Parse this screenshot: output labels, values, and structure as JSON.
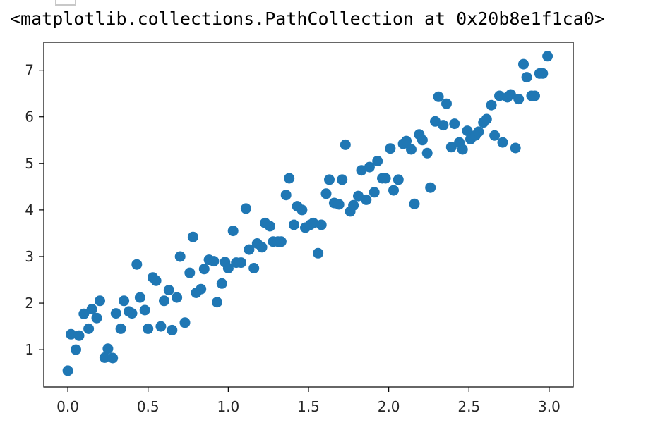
{
  "output": {
    "repr_text": "<matplotlib.collections.PathCollection at 0x20b8e1f1ca0>"
  },
  "chart_data": {
    "type": "scatter",
    "title": "",
    "xlabel": "",
    "ylabel": "",
    "xlim": [
      -0.15,
      3.15
    ],
    "ylim": [
      0.2,
      7.6
    ],
    "xticks": [
      0.0,
      0.5,
      1.0,
      1.5,
      2.0,
      2.5,
      3.0
    ],
    "xtick_labels": [
      "0.0",
      "0.5",
      "1.0",
      "1.5",
      "2.0",
      "2.5",
      "3.0"
    ],
    "yticks": [
      1,
      2,
      3,
      4,
      5,
      6,
      7
    ],
    "ytick_labels": [
      "1",
      "2",
      "3",
      "4",
      "5",
      "6",
      "7"
    ],
    "grid": false,
    "marker_color": "#1f77b4",
    "series": [
      {
        "points": [
          [
            0.0,
            0.55
          ],
          [
            0.02,
            1.33
          ],
          [
            0.05,
            1.0
          ],
          [
            0.07,
            1.3
          ],
          [
            0.1,
            1.77
          ],
          [
            0.13,
            1.45
          ],
          [
            0.15,
            1.87
          ],
          [
            0.18,
            1.68
          ],
          [
            0.2,
            2.05
          ],
          [
            0.23,
            0.83
          ],
          [
            0.25,
            1.02
          ],
          [
            0.28,
            0.82
          ],
          [
            0.3,
            1.78
          ],
          [
            0.33,
            1.45
          ],
          [
            0.35,
            2.05
          ],
          [
            0.38,
            1.82
          ],
          [
            0.4,
            1.78
          ],
          [
            0.43,
            2.83
          ],
          [
            0.45,
            2.12
          ],
          [
            0.48,
            1.85
          ],
          [
            0.5,
            1.45
          ],
          [
            0.53,
            2.55
          ],
          [
            0.55,
            2.48
          ],
          [
            0.58,
            1.5
          ],
          [
            0.6,
            2.05
          ],
          [
            0.63,
            2.28
          ],
          [
            0.65,
            1.42
          ],
          [
            0.68,
            2.12
          ],
          [
            0.7,
            3.0
          ],
          [
            0.73,
            1.58
          ],
          [
            0.76,
            2.65
          ],
          [
            0.78,
            3.42
          ],
          [
            0.8,
            2.22
          ],
          [
            0.83,
            2.3
          ],
          [
            0.85,
            2.73
          ],
          [
            0.88,
            2.93
          ],
          [
            0.91,
            2.9
          ],
          [
            0.93,
            2.02
          ],
          [
            0.96,
            2.42
          ],
          [
            0.98,
            2.88
          ],
          [
            1.0,
            2.75
          ],
          [
            1.03,
            3.55
          ],
          [
            1.05,
            2.87
          ],
          [
            1.08,
            2.87
          ],
          [
            1.11,
            4.03
          ],
          [
            1.13,
            3.15
          ],
          [
            1.16,
            2.75
          ],
          [
            1.18,
            3.28
          ],
          [
            1.21,
            3.2
          ],
          [
            1.23,
            3.72
          ],
          [
            1.26,
            3.65
          ],
          [
            1.28,
            3.32
          ],
          [
            1.31,
            3.32
          ],
          [
            1.33,
            3.32
          ],
          [
            1.36,
            4.32
          ],
          [
            1.38,
            4.68
          ],
          [
            1.41,
            3.68
          ],
          [
            1.43,
            4.08
          ],
          [
            1.46,
            4.0
          ],
          [
            1.48,
            3.62
          ],
          [
            1.51,
            3.68
          ],
          [
            1.53,
            3.72
          ],
          [
            1.56,
            3.07
          ],
          [
            1.58,
            3.68
          ],
          [
            1.61,
            4.35
          ],
          [
            1.63,
            4.65
          ],
          [
            1.66,
            4.15
          ],
          [
            1.69,
            4.12
          ],
          [
            1.71,
            4.65
          ],
          [
            1.73,
            5.4
          ],
          [
            1.76,
            3.97
          ],
          [
            1.78,
            4.1
          ],
          [
            1.81,
            4.3
          ],
          [
            1.83,
            4.85
          ],
          [
            1.86,
            4.22
          ],
          [
            1.88,
            4.92
          ],
          [
            1.91,
            4.38
          ],
          [
            1.93,
            5.05
          ],
          [
            1.96,
            4.68
          ],
          [
            1.98,
            4.68
          ],
          [
            2.01,
            5.32
          ],
          [
            2.03,
            4.42
          ],
          [
            2.06,
            4.65
          ],
          [
            2.09,
            5.42
          ],
          [
            2.11,
            5.48
          ],
          [
            2.14,
            5.3
          ],
          [
            2.16,
            4.13
          ],
          [
            2.19,
            5.62
          ],
          [
            2.21,
            5.5
          ],
          [
            2.24,
            5.22
          ],
          [
            2.26,
            4.48
          ],
          [
            2.29,
            5.9
          ],
          [
            2.31,
            6.43
          ],
          [
            2.34,
            5.82
          ],
          [
            2.36,
            6.28
          ],
          [
            2.39,
            5.35
          ],
          [
            2.41,
            5.85
          ],
          [
            2.44,
            5.45
          ],
          [
            2.46,
            5.3
          ],
          [
            2.49,
            5.7
          ],
          [
            2.51,
            5.52
          ],
          [
            2.54,
            5.6
          ],
          [
            2.56,
            5.68
          ],
          [
            2.59,
            5.88
          ],
          [
            2.61,
            5.95
          ],
          [
            2.64,
            6.25
          ],
          [
            2.66,
            5.6
          ],
          [
            2.69,
            6.45
          ],
          [
            2.71,
            5.45
          ],
          [
            2.74,
            6.42
          ],
          [
            2.76,
            6.48
          ],
          [
            2.79,
            5.33
          ],
          [
            2.81,
            6.38
          ],
          [
            2.84,
            7.13
          ],
          [
            2.86,
            6.85
          ],
          [
            2.89,
            6.45
          ],
          [
            2.91,
            6.45
          ],
          [
            2.94,
            6.93
          ],
          [
            2.96,
            6.93
          ],
          [
            2.99,
            7.3
          ]
        ]
      }
    ]
  }
}
